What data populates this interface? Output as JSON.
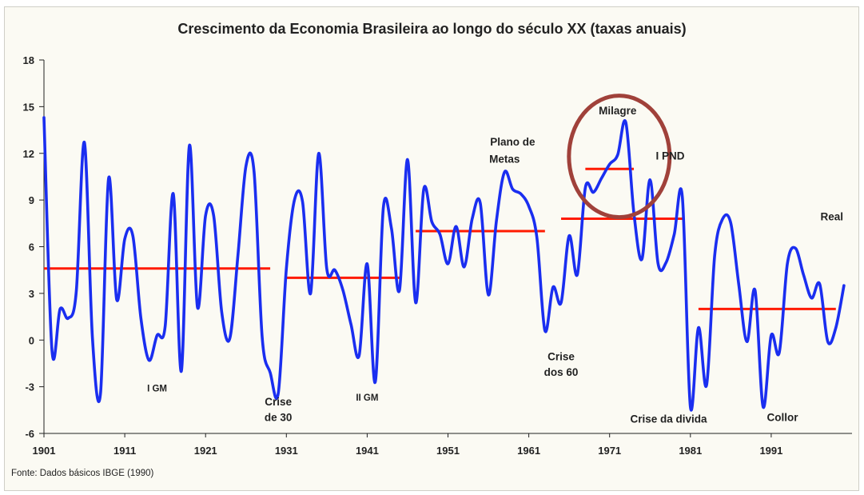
{
  "chart_data": {
    "type": "line",
    "title": "Crescimento da Economia Brasileira ao longo do século XX (taxas anuais)",
    "source": "Fonte: Dados básicos IBGE (1990)",
    "xlabel": "",
    "ylabel": "",
    "xlim": [
      1901,
      2001
    ],
    "ylim": [
      -6,
      18
    ],
    "x_ticks": [
      "1901",
      "1911",
      "1921",
      "1931",
      "1941",
      "1951",
      "1961",
      "1971",
      "1981",
      "1991"
    ],
    "y_ticks": [
      "18",
      "15",
      "12",
      "9",
      "6",
      "3",
      "0",
      "-3",
      "-6"
    ],
    "grid": false,
    "series": [
      {
        "color": "#1a2ef0",
        "x": [
          1901,
          1902,
          1903,
          1904,
          1905,
          1906,
          1907,
          1908,
          1909,
          1910,
          1911,
          1912,
          1913,
          1914,
          1915,
          1916,
          1917,
          1918,
          1919,
          1920,
          1921,
          1922,
          1923,
          1924,
          1925,
          1926,
          1927,
          1928,
          1929,
          1930,
          1931,
          1932,
          1933,
          1934,
          1935,
          1936,
          1937,
          1938,
          1939,
          1940,
          1941,
          1942,
          1943,
          1944,
          1945,
          1946,
          1947,
          1948,
          1949,
          1950,
          1951,
          1952,
          1953,
          1954,
          1955,
          1956,
          1957,
          1958,
          1959,
          1960,
          1961,
          1962,
          1963,
          1964,
          1965,
          1966,
          1967,
          1968,
          1969,
          1970,
          1971,
          1972,
          1973,
          1974,
          1975,
          1976,
          1977,
          1978,
          1979,
          1980,
          1981,
          1982,
          1983,
          1984,
          1985,
          1986,
          1987,
          1988,
          1989,
          1990,
          1991,
          1992,
          1993,
          1994,
          1995,
          1996,
          1997,
          1998,
          1999,
          2000
        ],
        "values": [
          14.3,
          -0.7,
          2.0,
          1.4,
          3.1,
          12.7,
          0.1,
          -3.4,
          10.4,
          2.6,
          6.5,
          6.7,
          1.4,
          -1.3,
          0.3,
          0.9,
          9.4,
          -2.0,
          12.5,
          2.1,
          8.0,
          8.0,
          1.8,
          0.1,
          5.4,
          11.2,
          10.8,
          0.2,
          -2.1,
          -3.4,
          4.6,
          9.0,
          8.9,
          3.0,
          12.0,
          4.6,
          4.5,
          3.2,
          1.0,
          -1.0,
          4.9,
          -2.7,
          8.5,
          7.2,
          3.2,
          11.6,
          2.4,
          9.7,
          7.6,
          6.8,
          4.9,
          7.3,
          4.7,
          7.8,
          8.8,
          2.9,
          7.7,
          10.8,
          9.7,
          9.4,
          8.6,
          6.6,
          0.6,
          3.4,
          2.4,
          6.7,
          4.2,
          9.8,
          9.5,
          10.4,
          11.3,
          11.9,
          14.0,
          8.2,
          5.2,
          10.3,
          4.9,
          5.0,
          6.8,
          9.2,
          -4.3,
          0.8,
          -2.9,
          5.4,
          7.8,
          7.5,
          3.5,
          -0.1,
          3.2,
          -4.3,
          0.3,
          -0.8,
          4.9,
          5.9,
          4.2,
          2.7,
          3.6,
          -0.1,
          0.8,
          3.5
        ]
      }
    ],
    "mean_lines": [
      {
        "from": 1901,
        "to": 1929,
        "value": 4.6
      },
      {
        "from": 1931,
        "to": 1945,
        "value": 4.0
      },
      {
        "from": 1947,
        "to": 1963,
        "value": 7.0
      },
      {
        "from": 1965,
        "to": 1980,
        "value": 7.8
      },
      {
        "from": 1968,
        "to": 1974,
        "value": 11.0
      },
      {
        "from": 1982,
        "to": 1999,
        "value": 2.0
      }
    ],
    "annotations": [
      {
        "text": "I GM",
        "x": 1915,
        "y": -3.3
      },
      {
        "text": "Crise",
        "x": 1930,
        "y": -4.2
      },
      {
        "text": "de 30",
        "x": 1930,
        "y": -5.2
      },
      {
        "text": "II GM",
        "x": 1941,
        "y": -3.9
      },
      {
        "text": "Plano de",
        "x": 1959,
        "y": 12.5
      },
      {
        "text": "Metas",
        "x": 1958,
        "y": 11.4
      },
      {
        "text": "Crise",
        "x": 1965,
        "y": -1.3
      },
      {
        "text": "dos 60",
        "x": 1965,
        "y": -2.3
      },
      {
        "text": "Milagre",
        "x": 1972,
        "y": 14.5
      },
      {
        "text": "I PND",
        "x": 1978.5,
        "y": 11.6
      },
      {
        "text": "Crise da divida",
        "x": 1978.3,
        "y": -5.3
      },
      {
        "text": "Collor",
        "x": 1992.4,
        "y": -5.2
      },
      {
        "text": "Real",
        "x": 1998.5,
        "y": 7.7
      }
    ],
    "highlight_circle_color": "#a0413a",
    "mean_line_color": "#ff1a00"
  }
}
